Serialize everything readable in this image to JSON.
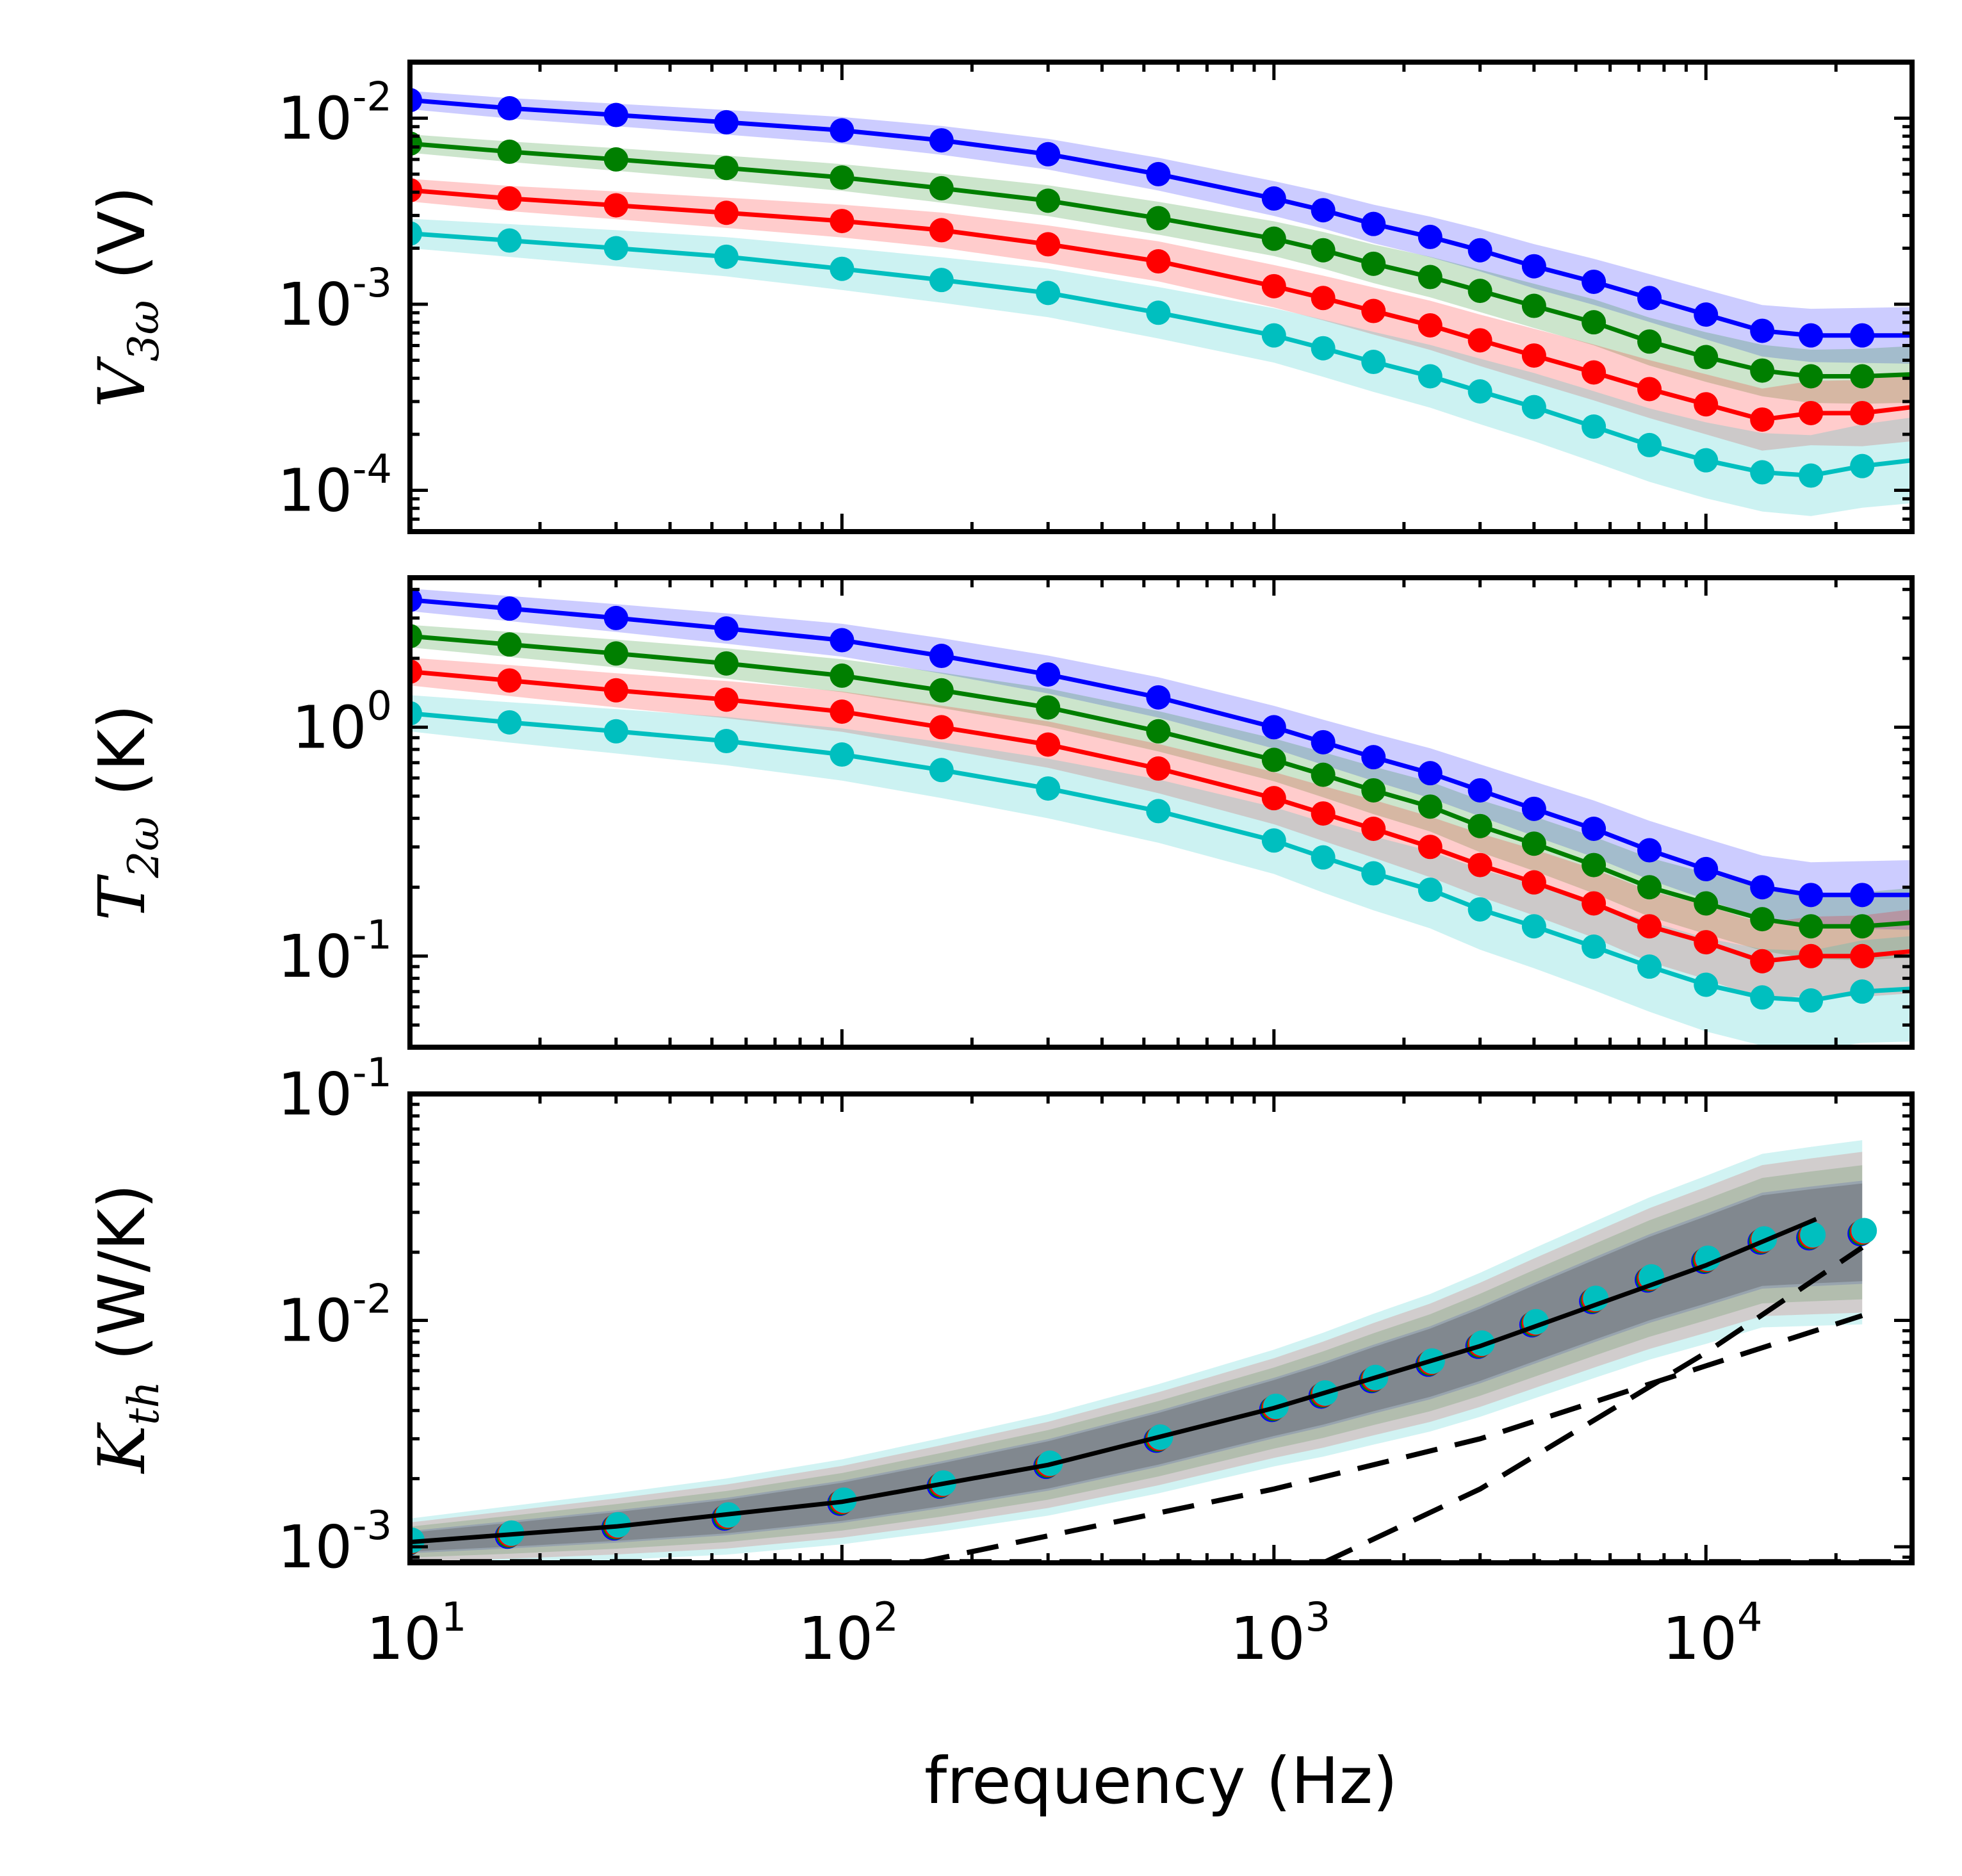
{
  "chart_data": [
    {
      "type": "line",
      "name": "voltage-3w",
      "ylabel": {
        "sym": "V",
        "sub": "3ω",
        "unit": "(V)"
      },
      "xlabel": "",
      "xscale": "log",
      "yscale": "log",
      "xlim": [
        10,
        30000
      ],
      "ylim": [
        6e-05,
        0.02
      ],
      "yticks": [
        {
          "value": 0.01,
          "base": "10",
          "exp": "-2"
        },
        {
          "value": 0.001,
          "base": "10",
          "exp": "-3"
        },
        {
          "value": 0.0001,
          "base": "10",
          "exp": "-4"
        }
      ],
      "x": [
        10,
        17,
        30,
        54,
        100,
        170,
        300,
        540,
        1000,
        1300,
        1700,
        2300,
        3000,
        4000,
        5500,
        7400,
        10000,
        13500,
        17500,
        23000,
        30000
      ],
      "series": [
        {
          "name": "blue",
          "color": "#0000ff",
          "band": 0.12,
          "values": [
            0.0125,
            0.0113,
            0.0104,
            0.0095,
            0.0086,
            0.0076,
            0.0064,
            0.005,
            0.0037,
            0.0032,
            0.0027,
            0.0023,
            0.00195,
            0.0016,
            0.00132,
            0.00108,
            0.00088,
            0.00072,
            0.00068,
            0.00068,
            0.00068
          ]
        },
        {
          "name": "green",
          "color": "#007f00",
          "band": 0.12,
          "values": [
            0.0073,
            0.0066,
            0.006,
            0.0054,
            0.0048,
            0.0042,
            0.0036,
            0.0029,
            0.00225,
            0.00195,
            0.00165,
            0.0014,
            0.00118,
            0.00098,
            0.0008,
            0.00063,
            0.00052,
            0.00044,
            0.00041,
            0.00041,
            0.00042
          ]
        },
        {
          "name": "red",
          "color": "#ff0000",
          "band": 0.15,
          "values": [
            0.0041,
            0.0037,
            0.0034,
            0.0031,
            0.0028,
            0.0025,
            0.0021,
            0.0017,
            0.00125,
            0.00108,
            0.00092,
            0.00077,
            0.00064,
            0.00053,
            0.00043,
            0.00035,
            0.00029,
            0.00024,
            0.00026,
            0.00026,
            0.00028
          ]
        },
        {
          "name": "cyan",
          "color": "#00bfbf",
          "band": 0.2,
          "values": [
            0.0024,
            0.0022,
            0.002,
            0.0018,
            0.00155,
            0.00135,
            0.00115,
            0.0009,
            0.00068,
            0.00058,
            0.00049,
            0.00041,
            0.00034,
            0.00028,
            0.00022,
            0.000175,
            0.000145,
            0.000125,
            0.00012,
            0.000135,
            0.000145
          ]
        }
      ]
    },
    {
      "type": "line",
      "name": "temperature-2w",
      "ylabel": {
        "sym": "T",
        "sub": "2ω",
        "unit": "(K)"
      },
      "xlabel": "",
      "xscale": "log",
      "yscale": "log",
      "xlim": [
        10,
        30000
      ],
      "ylim": [
        0.04,
        4.5
      ],
      "yticks": [
        {
          "value": 1,
          "base": "10",
          "exp": "0"
        },
        {
          "value": 0.1,
          "base": "10",
          "exp": "-1"
        }
      ],
      "x": [
        10,
        17,
        30,
        54,
        100,
        170,
        300,
        540,
        1000,
        1300,
        1700,
        2300,
        3000,
        4000,
        5500,
        7400,
        10000,
        13500,
        17500,
        23000,
        30000
      ],
      "series": [
        {
          "name": "blue",
          "color": "#0000ff",
          "band": 0.12,
          "values": [
            3.6,
            3.3,
            3.0,
            2.7,
            2.4,
            2.05,
            1.7,
            1.35,
            1.0,
            0.86,
            0.74,
            0.63,
            0.53,
            0.44,
            0.36,
            0.29,
            0.24,
            0.2,
            0.185,
            0.185,
            0.185
          ]
        },
        {
          "name": "green",
          "color": "#007f00",
          "band": 0.12,
          "values": [
            2.5,
            2.3,
            2.1,
            1.9,
            1.68,
            1.45,
            1.22,
            0.96,
            0.72,
            0.62,
            0.53,
            0.45,
            0.37,
            0.31,
            0.25,
            0.2,
            0.17,
            0.145,
            0.135,
            0.135,
            0.14
          ]
        },
        {
          "name": "red",
          "color": "#ff0000",
          "band": 0.15,
          "values": [
            1.75,
            1.6,
            1.45,
            1.32,
            1.17,
            1.0,
            0.84,
            0.66,
            0.49,
            0.42,
            0.36,
            0.3,
            0.25,
            0.21,
            0.17,
            0.135,
            0.115,
            0.095,
            0.1,
            0.1,
            0.105
          ]
        },
        {
          "name": "cyan",
          "color": "#00bfbf",
          "band": 0.2,
          "values": [
            1.15,
            1.05,
            0.96,
            0.87,
            0.76,
            0.65,
            0.54,
            0.43,
            0.32,
            0.27,
            0.23,
            0.195,
            0.16,
            0.135,
            0.11,
            0.09,
            0.075,
            0.066,
            0.064,
            0.07,
            0.072
          ]
        }
      ]
    },
    {
      "type": "scatter",
      "name": "thermal-conductance",
      "ylabel": {
        "sym": "K",
        "sub": "th",
        "unit": "(W/K)"
      },
      "xlabel": "frequency (Hz)",
      "xscale": "log",
      "yscale": "log",
      "xlim": [
        10,
        30000
      ],
      "ylim": [
        0.00085,
        0.1
      ],
      "yticks": [
        {
          "value": 0.1,
          "base": "10",
          "exp": "-1"
        },
        {
          "value": 0.01,
          "base": "10",
          "exp": "-2"
        },
        {
          "value": 0.001,
          "base": "10",
          "exp": "-3"
        }
      ],
      "xticks": [
        {
          "value": 10,
          "base": "10",
          "exp": "1"
        },
        {
          "value": 100,
          "base": "10",
          "exp": "2"
        },
        {
          "value": 1000,
          "base": "10",
          "exp": "3"
        },
        {
          "value": 10000,
          "base": "10",
          "exp": "4"
        }
      ],
      "x": [
        10,
        17,
        30,
        54,
        100,
        170,
        300,
        540,
        1000,
        1300,
        1700,
        2300,
        3000,
        4000,
        5500,
        7400,
        10000,
        13500,
        17500,
        23000
      ],
      "points": [
        0.00105,
        0.00113,
        0.00123,
        0.00136,
        0.00158,
        0.00188,
        0.0023,
        0.003,
        0.0041,
        0.0047,
        0.0055,
        0.0065,
        0.0078,
        0.0097,
        0.0123,
        0.0153,
        0.0185,
        0.0225,
        0.0235,
        0.0245
      ],
      "point_colors": [
        "#0000ff",
        "#007f00",
        "#ff0000",
        "#00bfbf"
      ],
      "fit": {
        "x": [
          10,
          30,
          100,
          300,
          1000,
          3000,
          10000,
          18000
        ],
        "y": [
          0.00105,
          0.00123,
          0.00158,
          0.0023,
          0.0041,
          0.0077,
          0.0175,
          0.028
        ]
      },
      "dashed": [
        {
          "x": [
            150,
            1000,
            3000,
            10000,
            23000
          ],
          "y": [
            0.00085,
            0.0018,
            0.003,
            0.0063,
            0.0105
          ]
        },
        {
          "x": [
            1300,
            3000,
            10000,
            23000
          ],
          "y": [
            0.00085,
            0.0018,
            0.0072,
            0.021
          ]
        },
        {
          "x": [
            10,
            30000
          ],
          "y": [
            0.00086,
            0.00086
          ]
        }
      ]
    }
  ]
}
